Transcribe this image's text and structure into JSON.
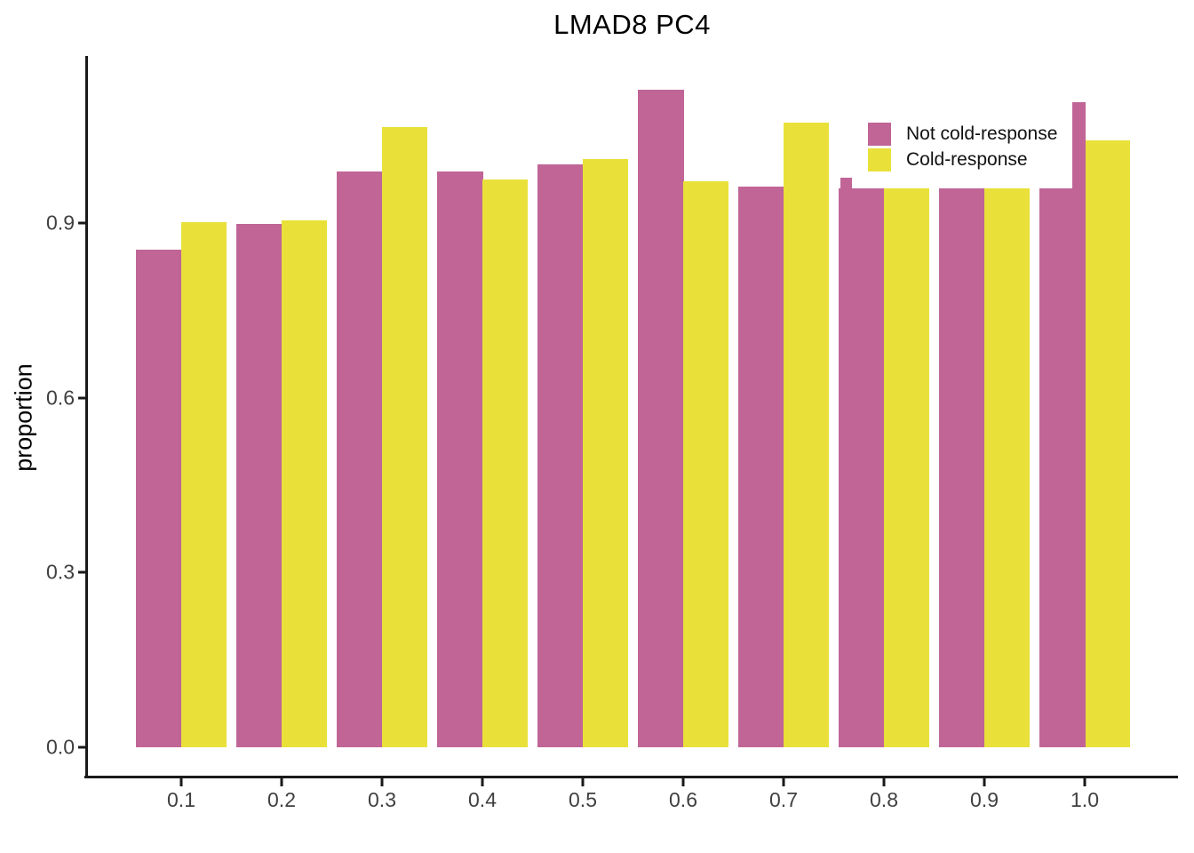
{
  "title": "LMAD8 PC4",
  "chart_data": {
    "type": "bar",
    "title": "LMAD8 PC4",
    "xlabel": "",
    "ylabel": "proportion",
    "categories": [
      "0.1",
      "0.2",
      "0.3",
      "0.4",
      "0.5",
      "0.6",
      "0.7",
      "0.8",
      "0.9",
      "1.0"
    ],
    "series": [
      {
        "name": "Not cold-response",
        "color": "#c06596",
        "values": [
          0.854,
          0.898,
          0.989,
          0.989,
          1.001,
          1.128,
          0.962,
          0.96,
          0.96,
          0.96
        ]
      },
      {
        "name": "Cold-response",
        "color": "#e9e13a",
        "values": [
          0.902,
          0.905,
          1.064,
          0.974,
          1.009,
          0.972,
          1.073,
          0.96,
          0.96,
          1.042
        ]
      }
    ],
    "extra_overlap_bars": [
      {
        "series": "Not cold-response",
        "color": "#c06596",
        "x_start": 0.757,
        "x_end": 0.768,
        "value": 0.978
      },
      {
        "series": "Not cold-response",
        "color": "#c06596",
        "x_start": 0.988,
        "x_end": 1.001,
        "value": 1.107
      }
    ],
    "y_ticks": [
      "0.0",
      "0.3",
      "0.6",
      "0.9"
    ],
    "y_tick_values": [
      0.0,
      0.3,
      0.6,
      0.9
    ],
    "ylim": [
      0,
      1.185
    ],
    "grid": false,
    "legend_position": "top-right",
    "legend": {
      "items": [
        {
          "label": "Not cold-response",
          "color": "#c06596"
        },
        {
          "label": "Cold-response",
          "color": "#e9e13a"
        }
      ]
    }
  }
}
